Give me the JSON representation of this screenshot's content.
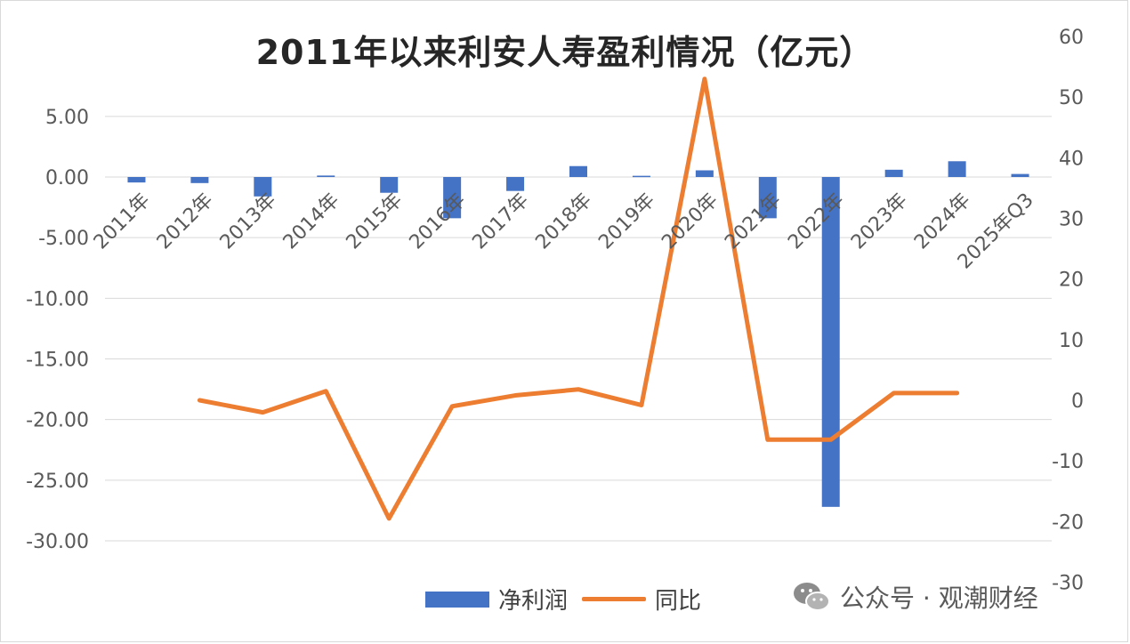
{
  "chart_data": {
    "type": "bar+line",
    "title": "2011年以来利安人寿盈利情况（亿元）",
    "categories": [
      "2011年",
      "2012年",
      "2013年",
      "2014年",
      "2015年",
      "2016年",
      "2017年",
      "2018年",
      "2019年",
      "2020年",
      "2021年",
      "2022年",
      "2023年",
      "2024年",
      "2025年Q3"
    ],
    "series": [
      {
        "name": "净利润",
        "type": "bar",
        "axis": "left",
        "color": "#4472C4",
        "values": [
          -0.45,
          -0.5,
          -1.6,
          0.12,
          -1.3,
          -3.4,
          -1.15,
          0.9,
          0.1,
          0.55,
          -3.4,
          -27.2,
          0.6,
          1.3,
          0.25
        ]
      },
      {
        "name": "同比",
        "type": "line",
        "axis": "right",
        "color": "#ED7D31",
        "values": [
          null,
          0,
          -2,
          1.5,
          -19.5,
          -1,
          0.8,
          1.8,
          -0.8,
          53,
          -6.5,
          -6.5,
          1.2,
          1.2,
          null
        ]
      }
    ],
    "y_left": {
      "min": -30,
      "max": 5,
      "ticks": [
        "5.00",
        "0.00",
        "-5.00",
        "-10.00",
        "-15.00",
        "-20.00",
        "-25.00",
        "-30.00"
      ]
    },
    "y_right": {
      "min": -30,
      "max": 60,
      "ticks": [
        "60",
        "50",
        "40",
        "30",
        "20",
        "10",
        "0",
        "-10",
        "-20",
        "-30"
      ]
    },
    "grid": true,
    "legend_position": "bottom"
  },
  "watermark": {
    "text": "公众号 · 观潮财经",
    "icon": "wechat-icon"
  }
}
